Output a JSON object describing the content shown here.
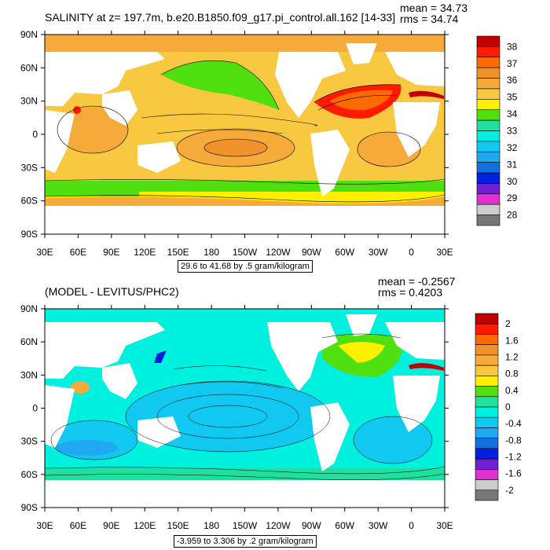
{
  "lat_ticks": [
    "90N",
    "60N",
    "30N",
    "0",
    "30S",
    "60S",
    "90S"
  ],
  "lon_ticks": [
    "30E",
    "60E",
    "90E",
    "120E",
    "150E",
    "180",
    "150W",
    "120W",
    "90W",
    "60W",
    "30W",
    "0",
    "30E"
  ],
  "panels": [
    {
      "title": "SALINITY at z= 197.7m, b.e20.B1850.f09_g17.pi_control.all.162 [14-33]",
      "mean_label": "mean = 34.73",
      "rms_label": "rms = 34.74",
      "range_label": "29.6 to 41.68 by .5 gram/kilogram",
      "colorbar": {
        "labels": [
          "38",
          "37",
          "36",
          "35",
          "34",
          "33",
          "32",
          "31",
          "30",
          "29",
          "28"
        ],
        "colors": [
          "#c00000",
          "#ff1a00",
          "#ff6a00",
          "#f0922a",
          "#f5aa3a",
          "#f8c840",
          "#fff000",
          "#50e010",
          "#20e0a0",
          "#00f0e0",
          "#10c8f0",
          "#20a8f0",
          "#1070e0",
          "#0020e0",
          "#7020d0",
          "#e030d0",
          "#cccccc",
          "#777777"
        ]
      }
    },
    {
      "title": "(MODEL - LEVITUS/PHC2)",
      "mean_label": "mean = -0.2567",
      "rms_label": "rms = 0.4203",
      "range_label": "-3.959 to 3.306 by .2 gram/kilogram",
      "colorbar": {
        "labels": [
          "2",
          "1.6",
          "1.2",
          "0.8",
          "0.4",
          "0",
          "-0.4",
          "-0.8",
          "-1.2",
          "-1.6",
          "-2"
        ],
        "colors": [
          "#c00000",
          "#ff1a00",
          "#ff6a00",
          "#f0922a",
          "#f5aa3a",
          "#f8c840",
          "#fff000",
          "#50e010",
          "#20e0a0",
          "#00f0e0",
          "#10c8f0",
          "#20a8f0",
          "#1070e0",
          "#0020e0",
          "#7020d0",
          "#e030d0",
          "#cccccc",
          "#777777"
        ]
      }
    }
  ]
}
